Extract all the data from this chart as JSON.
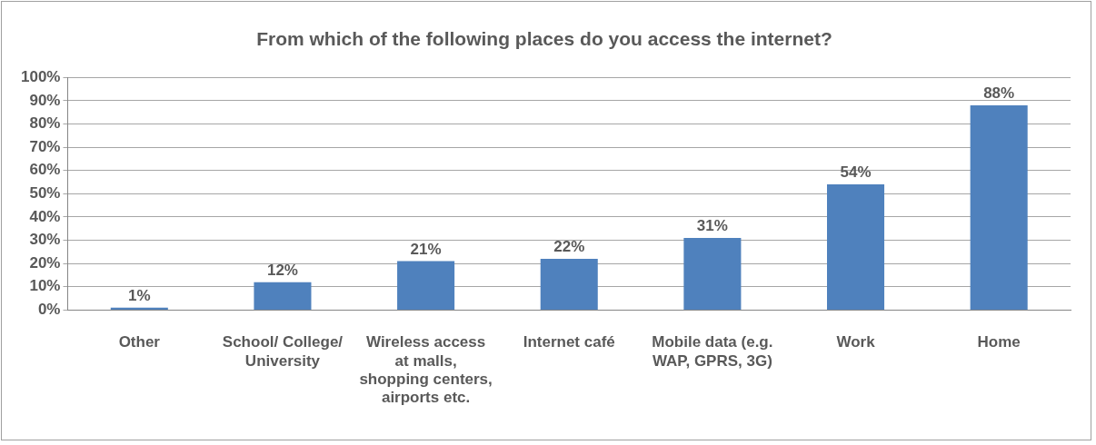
{
  "chart_data": {
    "type": "bar",
    "title": "From which of the following places do you access the internet?",
    "categories": [
      "Other",
      "School/ College/ University",
      "Wireless access at malls, shopping centers, airports etc.",
      "Internet café",
      "Mobile data (e.g. WAP, GPRS, 3G)",
      "Work",
      "Home"
    ],
    "values": [
      1,
      12,
      21,
      22,
      31,
      54,
      88
    ],
    "value_labels": [
      "1%",
      "12%",
      "21%",
      "22%",
      "31%",
      "54%",
      "88%"
    ],
    "color": "#4f81bd",
    "ylim": [
      0,
      100
    ],
    "yticks": [
      {
        "value": 0,
        "label": "0%"
      },
      {
        "value": 10,
        "label": "10%"
      },
      {
        "value": 20,
        "label": "20%"
      },
      {
        "value": 30,
        "label": "30%"
      },
      {
        "value": 40,
        "label": "40%"
      },
      {
        "value": 50,
        "label": "50%"
      },
      {
        "value": 60,
        "label": "60%"
      },
      {
        "value": 70,
        "label": "70%"
      },
      {
        "value": 80,
        "label": "80%"
      },
      {
        "value": 90,
        "label": "90%"
      },
      {
        "value": 100,
        "label": "100%"
      }
    ],
    "grid": "y"
  }
}
